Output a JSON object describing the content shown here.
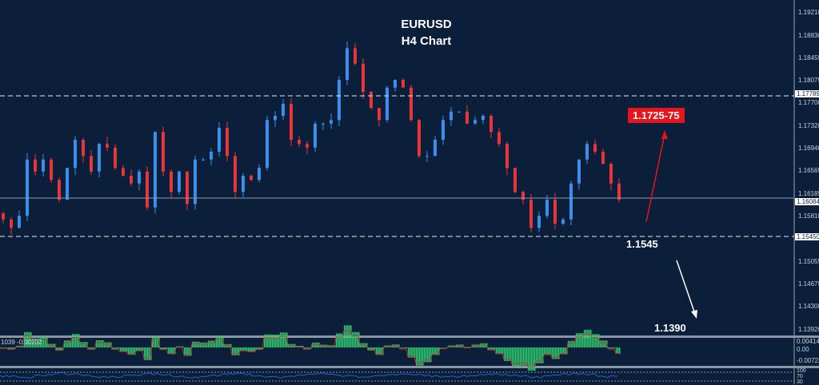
{
  "chart_data": {
    "type": "candlestick",
    "title": "EURUSD",
    "subtitle": "H4 Chart",
    "closes": [
      1.1576,
      1.1562,
      1.1582,
      1.1676,
      1.1656,
      1.1676,
      1.1642,
      1.1609,
      1.1662,
      1.1709,
      1.1682,
      1.1656,
      1.1702,
      1.1696,
      1.1662,
      1.1649,
      1.1636,
      1.1656,
      1.1596,
      1.1722,
      1.1656,
      1.1622,
      1.1656,
      1.1602,
      1.1676,
      1.1676,
      1.1689,
      1.1729,
      1.1682,
      1.1622,
      1.1649,
      1.1642,
      1.1662,
      1.1742,
      1.1749,
      1.1769,
      1.1709,
      1.1702,
      1.1696,
      1.1736,
      1.1736,
      1.1742,
      1.1809,
      1.1862,
      1.1836,
      1.1789,
      1.1762,
      1.1742,
      1.1796,
      1.1809,
      1.1796,
      1.1742,
      1.1682,
      1.1682,
      1.1709,
      1.1742,
      1.1756,
      1.1756,
      1.1736,
      1.1742,
      1.1749,
      1.1722,
      1.1702,
      1.1662,
      1.1622,
      1.1609,
      1.1562,
      1.1582,
      1.1609,
      1.1569,
      1.1576,
      1.1636,
      1.1676,
      1.1702,
      1.1689,
      1.1669,
      1.1636,
      1.1609
    ],
    "y_ticks": [
      "1.19210",
      "1.18830",
      "1.18455",
      "1.18075",
      "1.17700",
      "1.17320",
      "1.16940",
      "1.16565",
      "1.16185",
      "1.15810",
      "1.15055",
      "1.14675",
      "1.14300",
      "1.13920"
    ],
    "ylim": [
      1.1355,
      1.1942
    ],
    "levels": {
      "resistance": "1.17789",
      "current": "1.16084",
      "support": "1.15450"
    },
    "up_color": "#3b8fe8",
    "down_color": "#e8343b",
    "annotations": {
      "target_up": "1.1725-75",
      "support_label": "1.1545",
      "target_down": "1.1390"
    },
    "macd": {
      "label": "1039 -0.00202",
      "ticks": [
        "0.004141",
        "0.00",
        "-0.00722"
      ],
      "hist_color": "#2ecc71",
      "signal_color": "#c0392b"
    },
    "oscillator": {
      "ticks": [
        "100",
        "70",
        "30"
      ],
      "line_color": "#2a5bd7"
    }
  }
}
